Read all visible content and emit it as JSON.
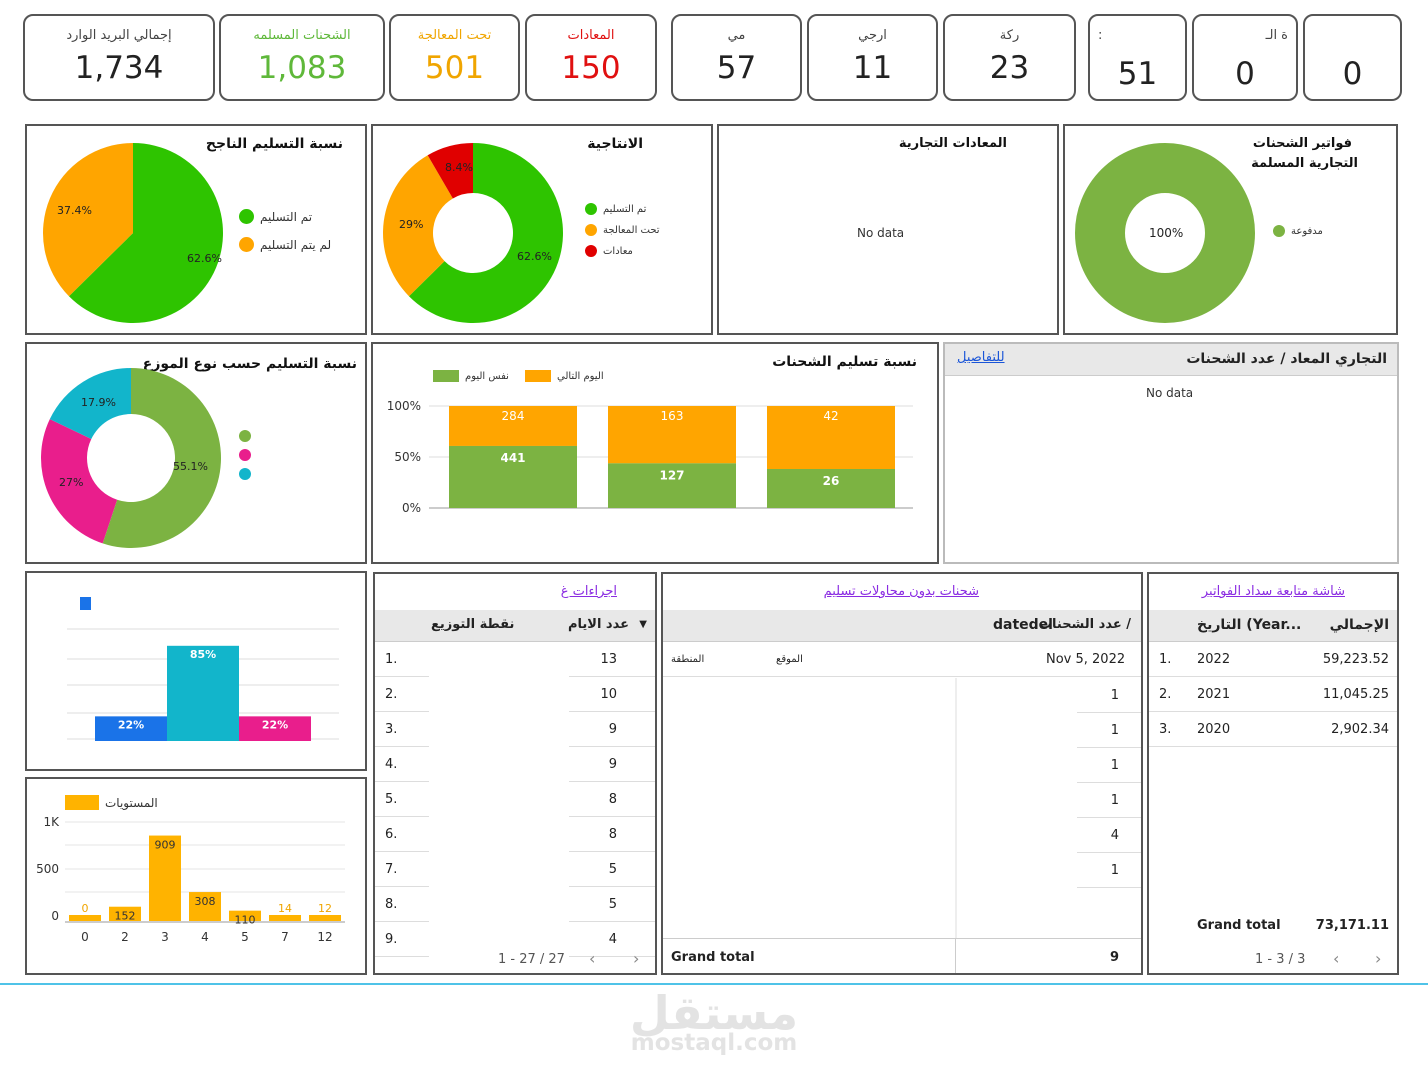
{
  "kpis": [
    {
      "label": "إجمالي البريد الوارد",
      "value": "1,734",
      "color": "#222"
    },
    {
      "label": "الشحنات المسلمه",
      "value": "1,083",
      "color": "#5fb83a"
    },
    {
      "label": "تحت المعالجة",
      "value": "501",
      "color": "#f0a500"
    },
    {
      "label": "المعادات",
      "value": "150",
      "color": "#e01010"
    },
    {
      "label": "مي",
      "value": "57",
      "color": "#222"
    },
    {
      "label": "ارجي",
      "value": "11",
      "color": "#222"
    },
    {
      "label": "ركة",
      "value": "23",
      "color": "#222"
    },
    {
      "label": ":",
      "value": "51",
      "color": "#222"
    },
    {
      "label": "ة الـ",
      "value": "0",
      "color": "#222"
    },
    {
      "label": "",
      "value": "0",
      "color": "#222"
    }
  ],
  "delivery_rate": {
    "title": "نسبة التسليم الناجح",
    "legend": [
      "تم التسليم",
      "لم يتم التسليم"
    ],
    "chart_data": {
      "type": "pie",
      "labels": [
        "تم التسليم",
        "لم يتم التسليم"
      ],
      "values": [
        62.6,
        37.4
      ],
      "colors": [
        "#2ec400",
        "#ffa500"
      ]
    },
    "pct_labels": [
      "62.6%",
      "37.4%"
    ]
  },
  "productivity": {
    "title": "الانتاجية",
    "legend": [
      "تم التسليم",
      "تحت المعالجة",
      "معادات"
    ],
    "chart_data": {
      "type": "pie",
      "donut": true,
      "labels": [
        "تم التسليم",
        "تحت المعالجة",
        "معادات"
      ],
      "values": [
        62.6,
        29,
        8.4
      ],
      "colors": [
        "#2ec400",
        "#ffa500",
        "#e00000"
      ]
    },
    "pct_labels": [
      "62.6%",
      "29%",
      "8.4%"
    ]
  },
  "commercial_returns": {
    "title": "المعادات التجارية",
    "nodata": "No data"
  },
  "invoices": {
    "title_line1": "فواتير الشحنات",
    "title_line2": "التجارية المسلمة",
    "legend": [
      "مدفوعة"
    ],
    "chart_data": {
      "type": "pie",
      "donut": true,
      "labels": [
        "مدفوعة"
      ],
      "values": [
        100
      ],
      "colors": [
        "#7cb342"
      ]
    },
    "pct_labels": [
      "100%"
    ]
  },
  "by_distributor": {
    "title": "نسبة التسليم حسب نوع الموزع",
    "chart_data": {
      "type": "pie",
      "donut": true,
      "labels": [
        "",
        "",
        ""
      ],
      "values": [
        55.1,
        27,
        17.9
      ],
      "colors": [
        "#7cb342",
        "#e91e8c",
        "#12b5cb"
      ]
    },
    "pct_labels": [
      "55.1%",
      "27%",
      "17.9%"
    ]
  },
  "shipment_rate": {
    "title": "نسبة تسليم الشحنات",
    "legend": [
      "نفس اليوم",
      "اليوم التالي"
    ],
    "axis": [
      "100%",
      "50%",
      "0%"
    ],
    "chart_data": {
      "type": "bar",
      "stacked": "percent",
      "categories": [
        "",
        "",
        ""
      ],
      "series": [
        {
          "name": "نفس اليوم",
          "values": [
            441,
            127,
            26
          ],
          "color": "#7cb342"
        },
        {
          "name": "اليوم التالي",
          "values": [
            284,
            163,
            42
          ],
          "color": "#ffa500"
        }
      ]
    },
    "value_labels": {
      "same": [
        "441",
        "127",
        "26"
      ],
      "next": [
        "284",
        "163",
        "42"
      ]
    }
  },
  "returns_table": {
    "header": "التجاري المعاد / عدد الشحنات",
    "link": "للتفاصيل",
    "nodata": "No data"
  },
  "small_bar": {
    "chart_data": {
      "type": "bar",
      "categories": [
        "",
        "",
        ""
      ],
      "values": [
        22,
        85,
        22
      ],
      "colors": [
        "#1a73e8",
        "#12b5cb",
        "#e91e8c"
      ]
    },
    "value_labels": [
      "22%",
      "85%",
      "22%"
    ]
  },
  "levels": {
    "legend": "المستويات",
    "yticks": [
      "1K",
      "500",
      "0"
    ],
    "chart_data": {
      "type": "bar",
      "categories": [
        "0",
        "2",
        "3",
        "4",
        "5",
        "7",
        "12"
      ],
      "values": [
        0,
        152,
        909,
        308,
        110,
        14,
        12
      ],
      "ylim": [
        0,
        1000
      ],
      "color": "#ffb300"
    },
    "value_labels": [
      "0",
      "152",
      "909",
      "308",
      "110",
      "14",
      "12"
    ]
  },
  "procedures": {
    "title": "اجراءات غ",
    "col_point": "نقطة التوزيع",
    "col_days": "عدد الايام",
    "sort_icon": "▼",
    "rows": [
      {
        "n": "1.",
        "days": "13"
      },
      {
        "n": "2.",
        "days": "10"
      },
      {
        "n": "3.",
        "days": "9"
      },
      {
        "n": "4.",
        "days": "9"
      },
      {
        "n": "5.",
        "days": "8"
      },
      {
        "n": "6.",
        "days": "8"
      },
      {
        "n": "7.",
        "days": "5"
      },
      {
        "n": "8.",
        "days": "5"
      },
      {
        "n": "9.",
        "days": "4"
      }
    ],
    "pager": "1 - 27 / 27"
  },
  "no_attempts": {
    "title": "شحنات بدون محاولات تسليم",
    "col_date": "datedel",
    "col_count": "عدد الشحنات /",
    "sub_region": "المنطقة",
    "sub_site": "الموقع",
    "first_date": "Nov 5, 2022",
    "counts": [
      "1",
      "1",
      "1",
      "1",
      "4",
      "1"
    ],
    "grand_label": "Grand total",
    "grand_value": "9"
  },
  "payments": {
    "title": "شاشة متابعة سداد الفواتير",
    "col_date": "التاريخ (Year...",
    "col_total": "الإجمالي",
    "rows": [
      {
        "n": "1.",
        "year": "2022",
        "total": "59,223.52"
      },
      {
        "n": "2.",
        "year": "2021",
        "total": "11,045.25"
      },
      {
        "n": "3.",
        "year": "2020",
        "total": "2,902.34"
      }
    ],
    "grand_label": "Grand total",
    "grand_value": "73,171.11",
    "pager": "1 - 3 / 3"
  },
  "watermark": {
    "ar": "مستقل",
    "en": "mostaql.com"
  }
}
